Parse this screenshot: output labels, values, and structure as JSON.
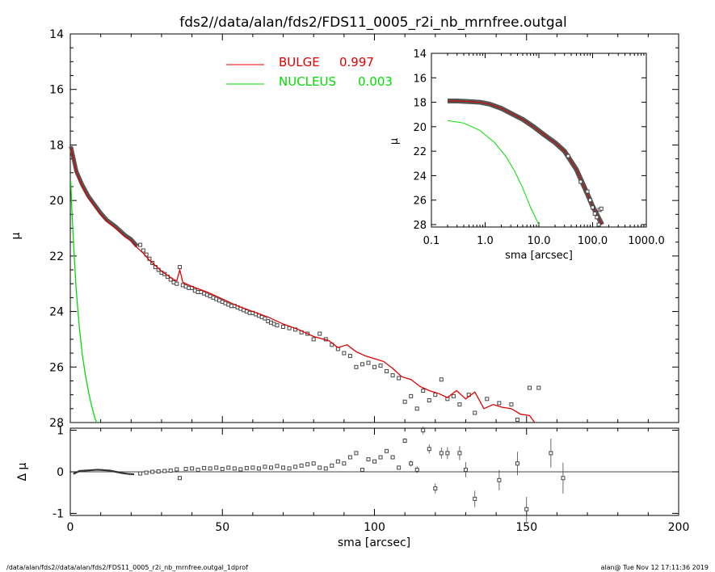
{
  "title": "fds2//data/alan/fds2/FDS11_0005_r2i_nb_mrnfree.outgal",
  "footer_left": "/data/alan/fds2//data/alan/fds2/FDS11_0005_r2i_nb_mrnfree.outgal_1dprof",
  "footer_right": "alan@  Tue Nov 12 17:11:36 2019",
  "colors": {
    "bulge": "#e00000",
    "nucleus": "#00dd00",
    "data": "#555555"
  },
  "chart_data": [
    {
      "id": "main",
      "type": "scatter",
      "xlabel": "",
      "ylabel": "μ",
      "xlim": [
        0,
        200
      ],
      "ylim": [
        28,
        14
      ],
      "yticks": [
        "14",
        "16",
        "18",
        "20",
        "22",
        "24",
        "26",
        "28"
      ],
      "legend": [
        {
          "label": "BULGE",
          "value": "0.997",
          "color": "#e00000"
        },
        {
          "label": "NUCLEUS",
          "value": "0.003",
          "color": "#00dd00"
        }
      ],
      "legend_position": "top-center",
      "series": [
        {
          "name": "BULGE",
          "kind": "line",
          "points": [
            [
              0.2,
              18.1
            ],
            [
              1,
              18.5
            ],
            [
              2,
              19.0
            ],
            [
              4,
              19.5
            ],
            [
              6,
              19.9
            ],
            [
              8,
              20.2
            ],
            [
              10,
              20.5
            ],
            [
              12,
              20.75
            ],
            [
              15,
              21.0
            ],
            [
              18,
              21.3
            ],
            [
              20,
              21.45
            ],
            [
              22,
              21.7
            ],
            [
              24,
              21.9
            ],
            [
              26,
              22.15
            ],
            [
              28,
              22.35
            ],
            [
              30,
              22.55
            ],
            [
              32,
              22.7
            ],
            [
              34,
              22.85
            ],
            [
              35,
              22.9
            ],
            [
              36,
              22.5
            ],
            [
              37,
              22.95
            ],
            [
              40,
              23.1
            ],
            [
              45,
              23.3
            ],
            [
              50,
              23.55
            ],
            [
              55,
              23.8
            ],
            [
              60,
              24.0
            ],
            [
              65,
              24.2
            ],
            [
              70,
              24.45
            ],
            [
              75,
              24.65
            ],
            [
              80,
              24.9
            ],
            [
              85,
              25.05
            ],
            [
              88,
              25.3
            ],
            [
              91,
              25.2
            ],
            [
              94,
              25.45
            ],
            [
              97,
              25.6
            ],
            [
              100,
              25.7
            ],
            [
              103,
              25.8
            ],
            [
              106,
              26.05
            ],
            [
              109,
              26.35
            ],
            [
              112,
              26.45
            ],
            [
              115,
              26.7
            ],
            [
              118,
              26.85
            ],
            [
              121,
              26.95
            ],
            [
              124,
              27.1
            ],
            [
              127,
              26.85
            ],
            [
              130,
              27.15
            ],
            [
              133,
              26.9
            ],
            [
              136,
              27.5
            ],
            [
              139,
              27.35
            ],
            [
              142,
              27.45
            ],
            [
              145,
              27.5
            ],
            [
              148,
              27.7
            ],
            [
              151,
              27.75
            ],
            [
              154,
              28.2
            ]
          ]
        },
        {
          "name": "NUCLEUS",
          "kind": "line",
          "points": [
            [
              0.15,
              19.3
            ],
            [
              0.5,
              20.3
            ],
            [
              1,
              21.4
            ],
            [
              1.5,
              22.4
            ],
            [
              2,
              23.3
            ],
            [
              3,
              24.6
            ],
            [
              4,
              25.6
            ],
            [
              5,
              26.3
            ],
            [
              6,
              26.9
            ],
            [
              7,
              27.4
            ],
            [
              8,
              27.8
            ],
            [
              9,
              28.1
            ]
          ]
        },
        {
          "name": "data",
          "kind": "points",
          "points": [
            [
              23,
              21.6
            ],
            [
              24,
              21.8
            ],
            [
              25,
              21.95
            ],
            [
              26,
              22.1
            ],
            [
              27,
              22.25
            ],
            [
              28,
              22.4
            ],
            [
              29,
              22.5
            ],
            [
              30,
              22.6
            ],
            [
              31,
              22.65
            ],
            [
              32,
              22.75
            ],
            [
              33,
              22.85
            ],
            [
              34,
              22.95
            ],
            [
              35,
              23.0
            ],
            [
              36,
              22.4
            ],
            [
              37,
              23.05
            ],
            [
              38,
              23.1
            ],
            [
              39,
              23.15
            ],
            [
              40,
              23.15
            ],
            [
              41,
              23.25
            ],
            [
              42,
              23.3
            ],
            [
              43,
              23.3
            ],
            [
              44,
              23.35
            ],
            [
              45,
              23.4
            ],
            [
              46,
              23.45
            ],
            [
              47,
              23.5
            ],
            [
              48,
              23.55
            ],
            [
              49,
              23.6
            ],
            [
              50,
              23.65
            ],
            [
              51,
              23.7
            ],
            [
              52,
              23.75
            ],
            [
              53,
              23.8
            ],
            [
              54,
              23.8
            ],
            [
              55,
              23.85
            ],
            [
              56,
              23.9
            ],
            [
              57,
              23.95
            ],
            [
              58,
              24.0
            ],
            [
              59,
              24.05
            ],
            [
              60,
              24.05
            ],
            [
              61,
              24.1
            ],
            [
              62,
              24.15
            ],
            [
              63,
              24.2
            ],
            [
              64,
              24.25
            ],
            [
              65,
              24.35
            ],
            [
              66,
              24.4
            ],
            [
              67,
              24.45
            ],
            [
              68,
              24.5
            ],
            [
              70,
              24.55
            ],
            [
              72,
              24.6
            ],
            [
              74,
              24.65
            ],
            [
              76,
              24.75
            ],
            [
              78,
              24.8
            ],
            [
              80,
              25.0
            ],
            [
              82,
              24.8
            ],
            [
              84,
              25.0
            ],
            [
              86,
              25.2
            ],
            [
              88,
              25.35
            ],
            [
              90,
              25.5
            ],
            [
              92,
              25.6
            ],
            [
              94,
              26.0
            ],
            [
              96,
              25.9
            ],
            [
              98,
              25.85
            ],
            [
              100,
              26.0
            ],
            [
              102,
              25.95
            ],
            [
              104,
              26.15
            ],
            [
              106,
              26.3
            ],
            [
              108,
              26.4
            ],
            [
              110,
              27.25
            ],
            [
              112,
              27.05
            ],
            [
              114,
              27.5
            ],
            [
              116,
              26.85
            ],
            [
              118,
              27.2
            ],
            [
              120,
              27.0
            ],
            [
              122,
              26.45
            ],
            [
              124,
              27.15
            ],
            [
              126,
              27.05
            ],
            [
              128,
              27.35
            ],
            [
              131,
              27.0
            ],
            [
              133,
              27.65
            ],
            [
              137,
              27.15
            ],
            [
              141,
              27.3
            ],
            [
              145,
              27.35
            ],
            [
              147,
              27.9
            ],
            [
              151,
              26.75
            ],
            [
              154,
              26.75
            ]
          ]
        }
      ]
    },
    {
      "id": "residual",
      "type": "scatter",
      "xlabel": "sma [arcsec]",
      "ylabel": "Δ μ",
      "xlim": [
        0,
        200
      ],
      "ylim": [
        -1.05,
        1.05
      ],
      "xticks": [
        "0",
        "50",
        "100",
        "150",
        "200"
      ],
      "yticks": [
        "-1",
        "0",
        "1"
      ],
      "points": [
        [
          1,
          -0.05
        ],
        [
          3,
          0.02
        ],
        [
          5,
          0.03
        ],
        [
          7,
          0.04
        ],
        [
          9,
          0.05
        ],
        [
          11,
          0.04
        ],
        [
          13,
          0.03
        ],
        [
          15,
          0.0
        ],
        [
          17,
          -0.03
        ],
        [
          19,
          -0.05
        ],
        [
          21,
          -0.06
        ],
        [
          23,
          -0.04
        ],
        [
          25,
          -0.02
        ],
        [
          27,
          0.0
        ],
        [
          29,
          0.01
        ],
        [
          31,
          0.02
        ],
        [
          33,
          0.03
        ],
        [
          35,
          0.06
        ],
        [
          36,
          -0.15
        ],
        [
          38,
          0.07
        ],
        [
          40,
          0.08
        ],
        [
          42,
          0.05
        ],
        [
          44,
          0.09
        ],
        [
          46,
          0.08
        ],
        [
          48,
          0.1
        ],
        [
          50,
          0.07
        ],
        [
          52,
          0.1
        ],
        [
          54,
          0.08
        ],
        [
          56,
          0.06
        ],
        [
          58,
          0.09
        ],
        [
          60,
          0.1
        ],
        [
          62,
          0.08
        ],
        [
          64,
          0.12
        ],
        [
          66,
          0.1
        ],
        [
          68,
          0.14
        ],
        [
          70,
          0.1
        ],
        [
          72,
          0.08
        ],
        [
          74,
          0.12
        ],
        [
          76,
          0.15
        ],
        [
          78,
          0.18
        ],
        [
          80,
          0.2
        ],
        [
          82,
          0.1
        ],
        [
          84,
          0.08
        ],
        [
          86,
          0.15
        ],
        [
          88,
          0.25
        ],
        [
          90,
          0.2
        ],
        [
          92,
          0.35
        ],
        [
          94,
          0.45
        ],
        [
          96,
          0.05
        ],
        [
          98,
          0.3
        ],
        [
          100,
          0.25
        ],
        [
          102,
          0.35
        ],
        [
          104,
          0.5
        ],
        [
          106,
          0.35
        ],
        [
          108,
          0.1
        ],
        [
          110,
          0.75
        ],
        [
          112,
          0.2
        ],
        [
          114,
          0.05
        ],
        [
          116,
          1.0
        ],
        [
          118,
          0.55
        ],
        [
          120,
          -0.4
        ],
        [
          122,
          0.45
        ],
        [
          124,
          0.45
        ],
        [
          128,
          0.45
        ],
        [
          130,
          0.05
        ],
        [
          133,
          -0.65
        ],
        [
          141,
          -0.2
        ],
        [
          147,
          0.2
        ],
        [
          150,
          -0.9
        ],
        [
          158,
          0.45
        ],
        [
          162,
          -0.15
        ]
      ]
    },
    {
      "id": "inset",
      "type": "line",
      "xlabel": "sma [arcsec]",
      "ylabel": "μ",
      "xscale": "log",
      "xlim": [
        0.1,
        1000
      ],
      "ylim": [
        28.2,
        14
      ],
      "xticks": [
        "0.1",
        "1.0",
        "10.0",
        "100.0",
        "1000.0"
      ],
      "yticks": [
        "14",
        "16",
        "18",
        "20",
        "22",
        "24",
        "26",
        "28"
      ],
      "series": [
        {
          "name": "BULGE",
          "points": [
            [
              0.2,
              17.9
            ],
            [
              0.3,
              17.9
            ],
            [
              0.5,
              17.95
            ],
            [
              0.8,
              18.0
            ],
            [
              1.2,
              18.15
            ],
            [
              2,
              18.5
            ],
            [
              3,
              18.9
            ],
            [
              5,
              19.4
            ],
            [
              8,
              20.0
            ],
            [
              12,
              20.6
            ],
            [
              20,
              21.3
            ],
            [
              30,
              22.0
            ],
            [
              50,
              23.5
            ],
            [
              80,
              25.5
            ],
            [
              100,
              26.5
            ],
            [
              150,
              28.0
            ]
          ]
        },
        {
          "name": "NUCLEUS",
          "points": [
            [
              0.2,
              19.5
            ],
            [
              0.4,
              19.7
            ],
            [
              0.8,
              20.3
            ],
            [
              1.5,
              21.3
            ],
            [
              2.5,
              22.5
            ],
            [
              3.5,
              23.6
            ],
            [
              5,
              25.0
            ],
            [
              7,
              26.6
            ],
            [
              10,
              28.0
            ]
          ]
        }
      ],
      "data_points": [
        [
          35,
          22.4
        ],
        [
          60,
          24.5
        ],
        [
          80,
          25.3
        ],
        [
          90,
          26.0
        ],
        [
          100,
          26.6
        ],
        [
          110,
          27.1
        ],
        [
          120,
          27.4
        ],
        [
          135,
          26.8
        ],
        [
          145,
          26.7
        ],
        [
          130,
          28.0
        ]
      ]
    }
  ]
}
